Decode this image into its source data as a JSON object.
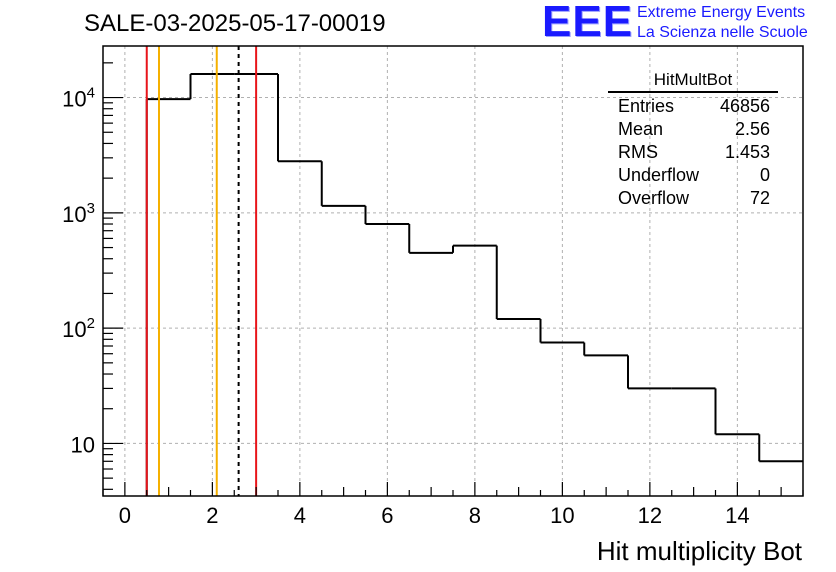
{
  "header": {
    "run_title": "SALE-03-2025-05-17-00019"
  },
  "logo": {
    "mark": "EEE",
    "line1": "Extreme Energy Events",
    "line2": "La Scienza nelle Scuole",
    "color": "#1a1aff"
  },
  "stats": {
    "title": "HitMultBot",
    "rows": [
      {
        "label": "Entries",
        "value": "46856"
      },
      {
        "label": "Mean",
        "value": "2.56"
      },
      {
        "label": "RMS",
        "value": "1.453"
      },
      {
        "label": "Underflow",
        "value": "0"
      },
      {
        "label": "Overflow",
        "value": "72"
      }
    ]
  },
  "chart_data": {
    "type": "histogram",
    "title": "HitMultBot",
    "xlabel": "Hit multiplicity Bot",
    "ylabel": "",
    "yscale": "log",
    "xlim": [
      -0.5,
      15.5
    ],
    "ylim": [
      3.5,
      28000
    ],
    "grid": true,
    "bin_width": 1,
    "bin_starts": [
      0.5,
      1.5,
      2.5,
      3.5,
      4.5,
      5.5,
      6.5,
      7.5,
      8.5,
      9.5,
      10.5,
      11.5,
      12.5,
      13.5,
      14.5
    ],
    "values": [
      9700,
      16000,
      16000,
      2800,
      1150,
      800,
      450,
      520,
      120,
      75,
      58,
      30,
      30,
      12,
      7
    ],
    "x_ticks": [
      0,
      2,
      4,
      6,
      8,
      10,
      12,
      14
    ],
    "x_tick_labels": [
      "0",
      "2",
      "4",
      "6",
      "8",
      "10",
      "12",
      "14"
    ],
    "y_ticks": [
      10,
      100,
      1000,
      10000
    ],
    "y_tick_labels": [
      {
        "base": "10",
        "exp": ""
      },
      {
        "base": "10",
        "exp": "2"
      },
      {
        "base": "10",
        "exp": "3"
      },
      {
        "base": "10",
        "exp": "4"
      }
    ],
    "markers": [
      {
        "name": "red-left",
        "x": 0.5,
        "color": "#e8141a",
        "style": "solid"
      },
      {
        "name": "orange-left",
        "x": 0.78,
        "color": "#f5b000",
        "style": "solid"
      },
      {
        "name": "orange-right",
        "x": 2.1,
        "color": "#f5b000",
        "style": "solid"
      },
      {
        "name": "mean",
        "x": 2.6,
        "color": "#000000",
        "style": "dashed"
      },
      {
        "name": "red-right",
        "x": 3.0,
        "color": "#e8141a",
        "style": "solid"
      }
    ]
  }
}
